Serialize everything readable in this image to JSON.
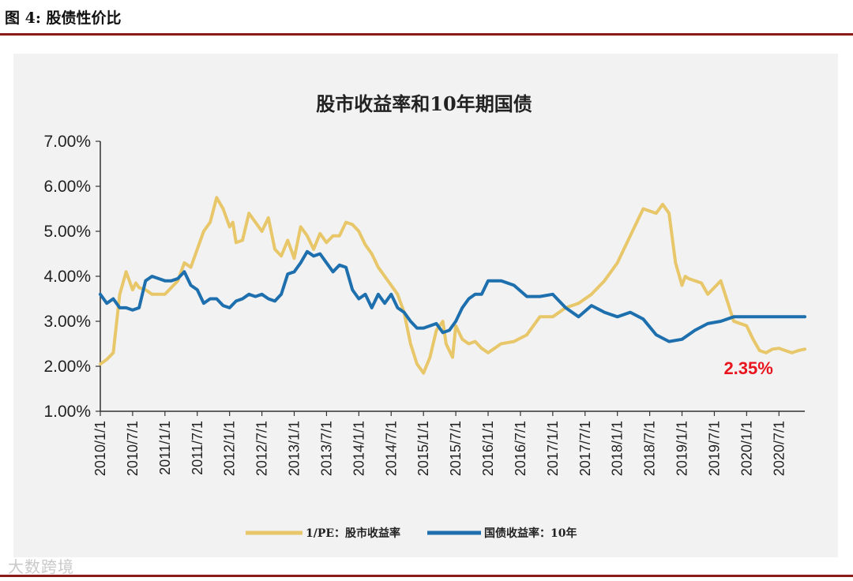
{
  "figure": {
    "label": "图 4:",
    "title": "股债性价比"
  },
  "watermark": "大数跨境",
  "colors": {
    "equity": "#e8c76a",
    "bond": "#1d6fae",
    "annotation": "#e8141e",
    "rule": "#8b1a1a"
  },
  "chart_data": {
    "type": "line",
    "title": "股市收益率和10年期国债",
    "xlabel": "",
    "ylabel": "",
    "ylim": [
      1.0,
      7.0
    ],
    "yticks": [
      "1.00%",
      "2.00%",
      "3.00%",
      "4.00%",
      "5.00%",
      "6.00%",
      "7.00%"
    ],
    "xlim": [
      2010.0,
      2020.9
    ],
    "xticks": [
      "2010/1/1",
      "2010/7/1",
      "2011/1/1",
      "2011/7/1",
      "2012/1/1",
      "2012/7/1",
      "2013/1/1",
      "2013/7/1",
      "2014/1/1",
      "2014/7/1",
      "2015/1/1",
      "2015/7/1",
      "2016/1/1",
      "2016/7/1",
      "2017/1/1",
      "2017/7/1",
      "2018/1/1",
      "2018/7/1",
      "2019/1/1",
      "2019/7/1",
      "2020/1/1",
      "2020/7/1"
    ],
    "legend_position": "bottom",
    "series": [
      {
        "name": "1/PE：股市收益率",
        "x": [
          2010.0,
          2010.1,
          2010.2,
          2010.3,
          2010.4,
          2010.5,
          2010.55,
          2010.6,
          2010.7,
          2010.8,
          2011.0,
          2011.2,
          2011.3,
          2011.4,
          2011.6,
          2011.7,
          2011.8,
          2011.9,
          2012.0,
          2012.05,
          2012.1,
          2012.2,
          2012.3,
          2012.4,
          2012.5,
          2012.6,
          2012.7,
          2012.8,
          2012.9,
          2013.0,
          2013.1,
          2013.2,
          2013.3,
          2013.4,
          2013.5,
          2013.6,
          2013.7,
          2013.8,
          2013.9,
          2014.0,
          2014.1,
          2014.2,
          2014.3,
          2014.4,
          2014.5,
          2014.6,
          2014.7,
          2014.8,
          2014.9,
          2015.0,
          2015.1,
          2015.2,
          2015.3,
          2015.35,
          2015.4,
          2015.45,
          2015.5,
          2015.6,
          2015.7,
          2015.8,
          2015.9,
          2016.0,
          2016.1,
          2016.2,
          2016.4,
          2016.6,
          2016.8,
          2017.0,
          2017.2,
          2017.4,
          2017.6,
          2017.8,
          2018.0,
          2018.2,
          2018.4,
          2018.6,
          2018.7,
          2018.8,
          2018.9,
          2019.0,
          2019.05,
          2019.1,
          2019.2,
          2019.3,
          2019.4,
          2019.6,
          2019.8,
          2020.0,
          2020.1,
          2020.2,
          2020.3,
          2020.4,
          2020.5,
          2020.6,
          2020.7,
          2020.8,
          2020.9
        ],
        "values": [
          2.05,
          2.15,
          2.3,
          3.6,
          4.1,
          3.7,
          3.85,
          3.75,
          3.7,
          3.6,
          3.6,
          3.9,
          4.3,
          4.2,
          5.0,
          5.2,
          5.75,
          5.5,
          5.1,
          5.2,
          4.75,
          4.8,
          5.4,
          5.2,
          5.0,
          5.3,
          4.6,
          4.45,
          4.8,
          4.4,
          5.1,
          4.9,
          4.6,
          4.95,
          4.75,
          4.9,
          4.9,
          5.2,
          5.15,
          5.0,
          4.7,
          4.5,
          4.2,
          4.0,
          3.8,
          3.6,
          3.2,
          2.5,
          2.05,
          1.85,
          2.2,
          2.8,
          3.0,
          2.5,
          2.35,
          2.2,
          2.9,
          2.6,
          2.5,
          2.55,
          2.4,
          2.3,
          2.4,
          2.5,
          2.55,
          2.7,
          3.1,
          3.1,
          3.3,
          3.4,
          3.6,
          3.9,
          4.3,
          4.9,
          5.5,
          5.4,
          5.6,
          5.4,
          4.3,
          3.8,
          4.0,
          3.95,
          3.9,
          3.85,
          3.6,
          3.9,
          3.0,
          2.9,
          2.6,
          2.35,
          2.3,
          2.38,
          2.4,
          2.35,
          2.3,
          2.35,
          2.38
        ]
      },
      {
        "name": "国债收益率：10年",
        "x": [
          2010.0,
          2010.1,
          2010.2,
          2010.3,
          2010.4,
          2010.5,
          2010.6,
          2010.7,
          2010.8,
          2010.9,
          2011.0,
          2011.1,
          2011.2,
          2011.3,
          2011.4,
          2011.5,
          2011.6,
          2011.7,
          2011.8,
          2011.9,
          2012.0,
          2012.1,
          2012.2,
          2012.3,
          2012.4,
          2012.5,
          2012.6,
          2012.7,
          2012.8,
          2012.9,
          2013.0,
          2013.1,
          2013.2,
          2013.3,
          2013.4,
          2013.5,
          2013.6,
          2013.7,
          2013.8,
          2013.9,
          2014.0,
          2014.1,
          2014.2,
          2014.3,
          2014.4,
          2014.5,
          2014.6,
          2014.7,
          2014.8,
          2014.9,
          2015.0,
          2015.1,
          2015.2,
          2015.3,
          2015.4,
          2015.5,
          2015.6,
          2015.7,
          2015.8,
          2015.9,
          2016.0,
          2016.2,
          2016.4,
          2016.6,
          2016.8,
          2017.0,
          2017.2,
          2017.4,
          2017.6,
          2017.8,
          2018.0,
          2018.2,
          2018.4,
          2018.6,
          2018.8,
          2019.0,
          2019.2,
          2019.4,
          2019.6,
          2019.8,
          2020.0,
          2020.1,
          2020.2,
          2020.3,
          2020.4,
          2020.5,
          2020.6,
          2020.7,
          2020.8,
          2020.9
        ],
        "values": [
          3.6,
          3.4,
          3.5,
          3.3,
          3.3,
          3.25,
          3.3,
          3.9,
          4.0,
          3.95,
          3.9,
          3.9,
          3.95,
          4.1,
          3.8,
          3.7,
          3.4,
          3.5,
          3.5,
          3.35,
          3.3,
          3.45,
          3.5,
          3.6,
          3.55,
          3.6,
          3.5,
          3.45,
          3.6,
          4.05,
          4.1,
          4.3,
          4.55,
          4.45,
          4.5,
          4.3,
          4.1,
          4.25,
          4.2,
          3.7,
          3.5,
          3.6,
          3.3,
          3.6,
          3.4,
          3.6,
          3.3,
          3.2,
          3.0,
          2.85,
          2.85,
          2.9,
          2.95,
          2.75,
          2.8,
          3.0,
          3.3,
          3.5,
          3.6,
          3.6,
          3.9,
          3.9,
          3.8,
          3.55,
          3.55,
          3.6,
          3.3,
          3.1,
          3.35,
          3.2,
          3.1,
          3.2,
          3.05,
          2.7,
          2.55,
          2.6,
          2.8,
          2.95,
          3.0,
          3.1,
          3.1,
          3.1,
          3.1,
          3.1,
          3.1,
          3.1,
          3.1,
          3.1,
          3.1,
          3.1
        ]
      }
    ],
    "annotations": [
      {
        "text": "2.35%",
        "x": 2020.6,
        "y": 2.0
      }
    ]
  }
}
